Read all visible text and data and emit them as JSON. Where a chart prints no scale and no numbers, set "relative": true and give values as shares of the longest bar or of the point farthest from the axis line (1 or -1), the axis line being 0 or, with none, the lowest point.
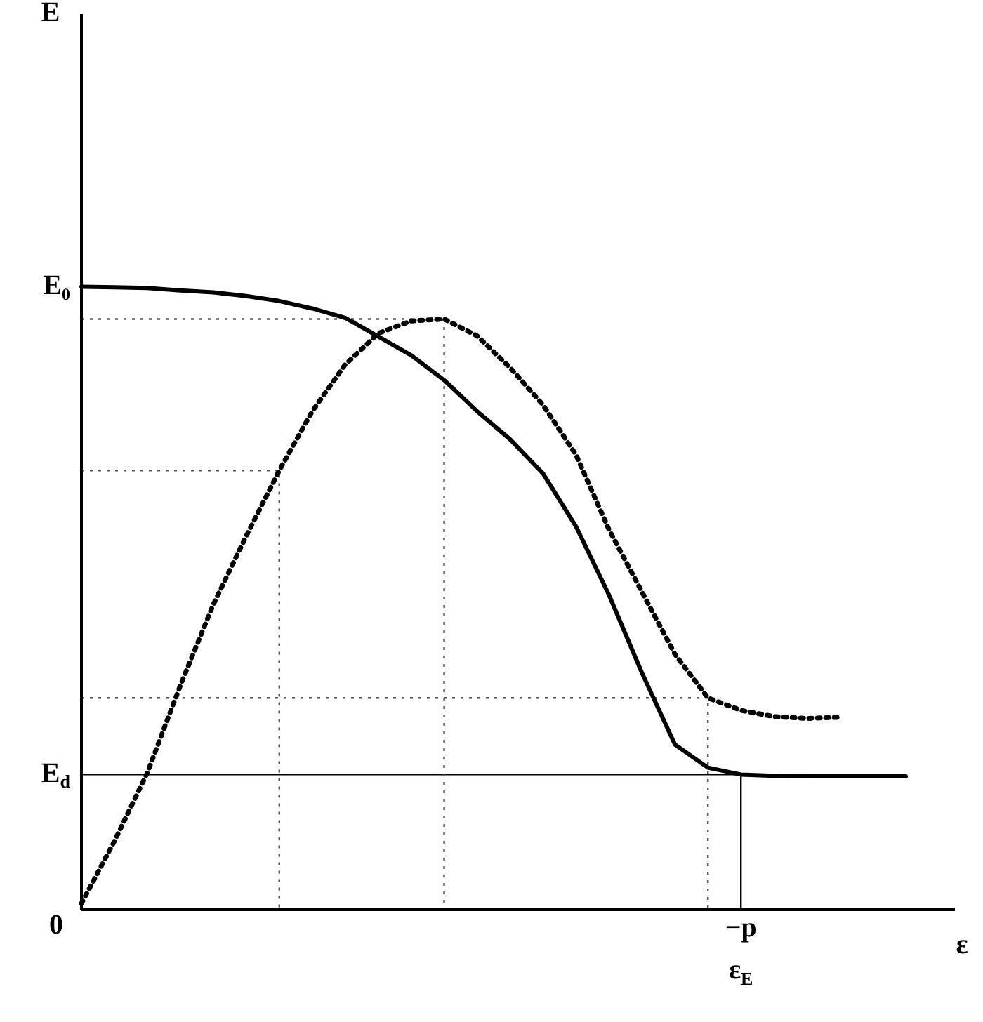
{
  "chart_data": {
    "type": "line",
    "relative": true,
    "xlabel": "ε",
    "categories": [
      null,
      null,
      null,
      null,
      null,
      null,
      null,
      null,
      null,
      null,
      null,
      null,
      null,
      null,
      null,
      null,
      null,
      null,
      null,
      null,
      null,
      null,
      null,
      null,
      null,
      null
    ],
    "grid": false,
    "legend": false,
    "marker": "none",
    "series": [
      {
        "color": "#000000",
        "line_style": "solid",
        "values": [
          1,
          0.999,
          0.998,
          0.994,
          0.991,
          0.985,
          0.977,
          0.965,
          0.95,
          0.92,
          0.89,
          0.85,
          0.8,
          0.755,
          0.7,
          0.615,
          0.505,
          0.38,
          0.265,
          0.228,
          0.217,
          0.215,
          0.214,
          0.214,
          0.214,
          0.214
        ]
      },
      {
        "color": "#000000",
        "line_style": "dotted",
        "values": [
          0.01,
          0.11,
          0.22,
          0.36,
          0.49,
          0.6,
          0.705,
          0.8,
          0.875,
          0.925,
          0.945,
          0.948,
          0.921,
          0.87,
          0.81,
          0.73,
          0.61,
          0.51,
          0.41,
          0.34,
          0.32,
          0.31,
          0.307,
          0.309,
          null,
          null
        ]
      }
    ],
    "ref_lines": [
      {
        "axis": "y",
        "value": 0.217,
        "label": "E$_{d}$",
        "color": "#000000",
        "line_style": "solid"
      },
      {
        "axis": "y",
        "value": 0.948,
        "color": "#555555",
        "line_style": "dotted"
      },
      {
        "axis": "y",
        "value": 0.705,
        "color": "#555555",
        "line_style": "dotted"
      },
      {
        "axis": "y",
        "value": 0.34,
        "color": "#555555",
        "line_style": "dotted"
      }
    ],
    "annotations": [
      "E",
      "E₀",
      "0",
      "−p",
      "ε$_{E}$"
    ]
  }
}
